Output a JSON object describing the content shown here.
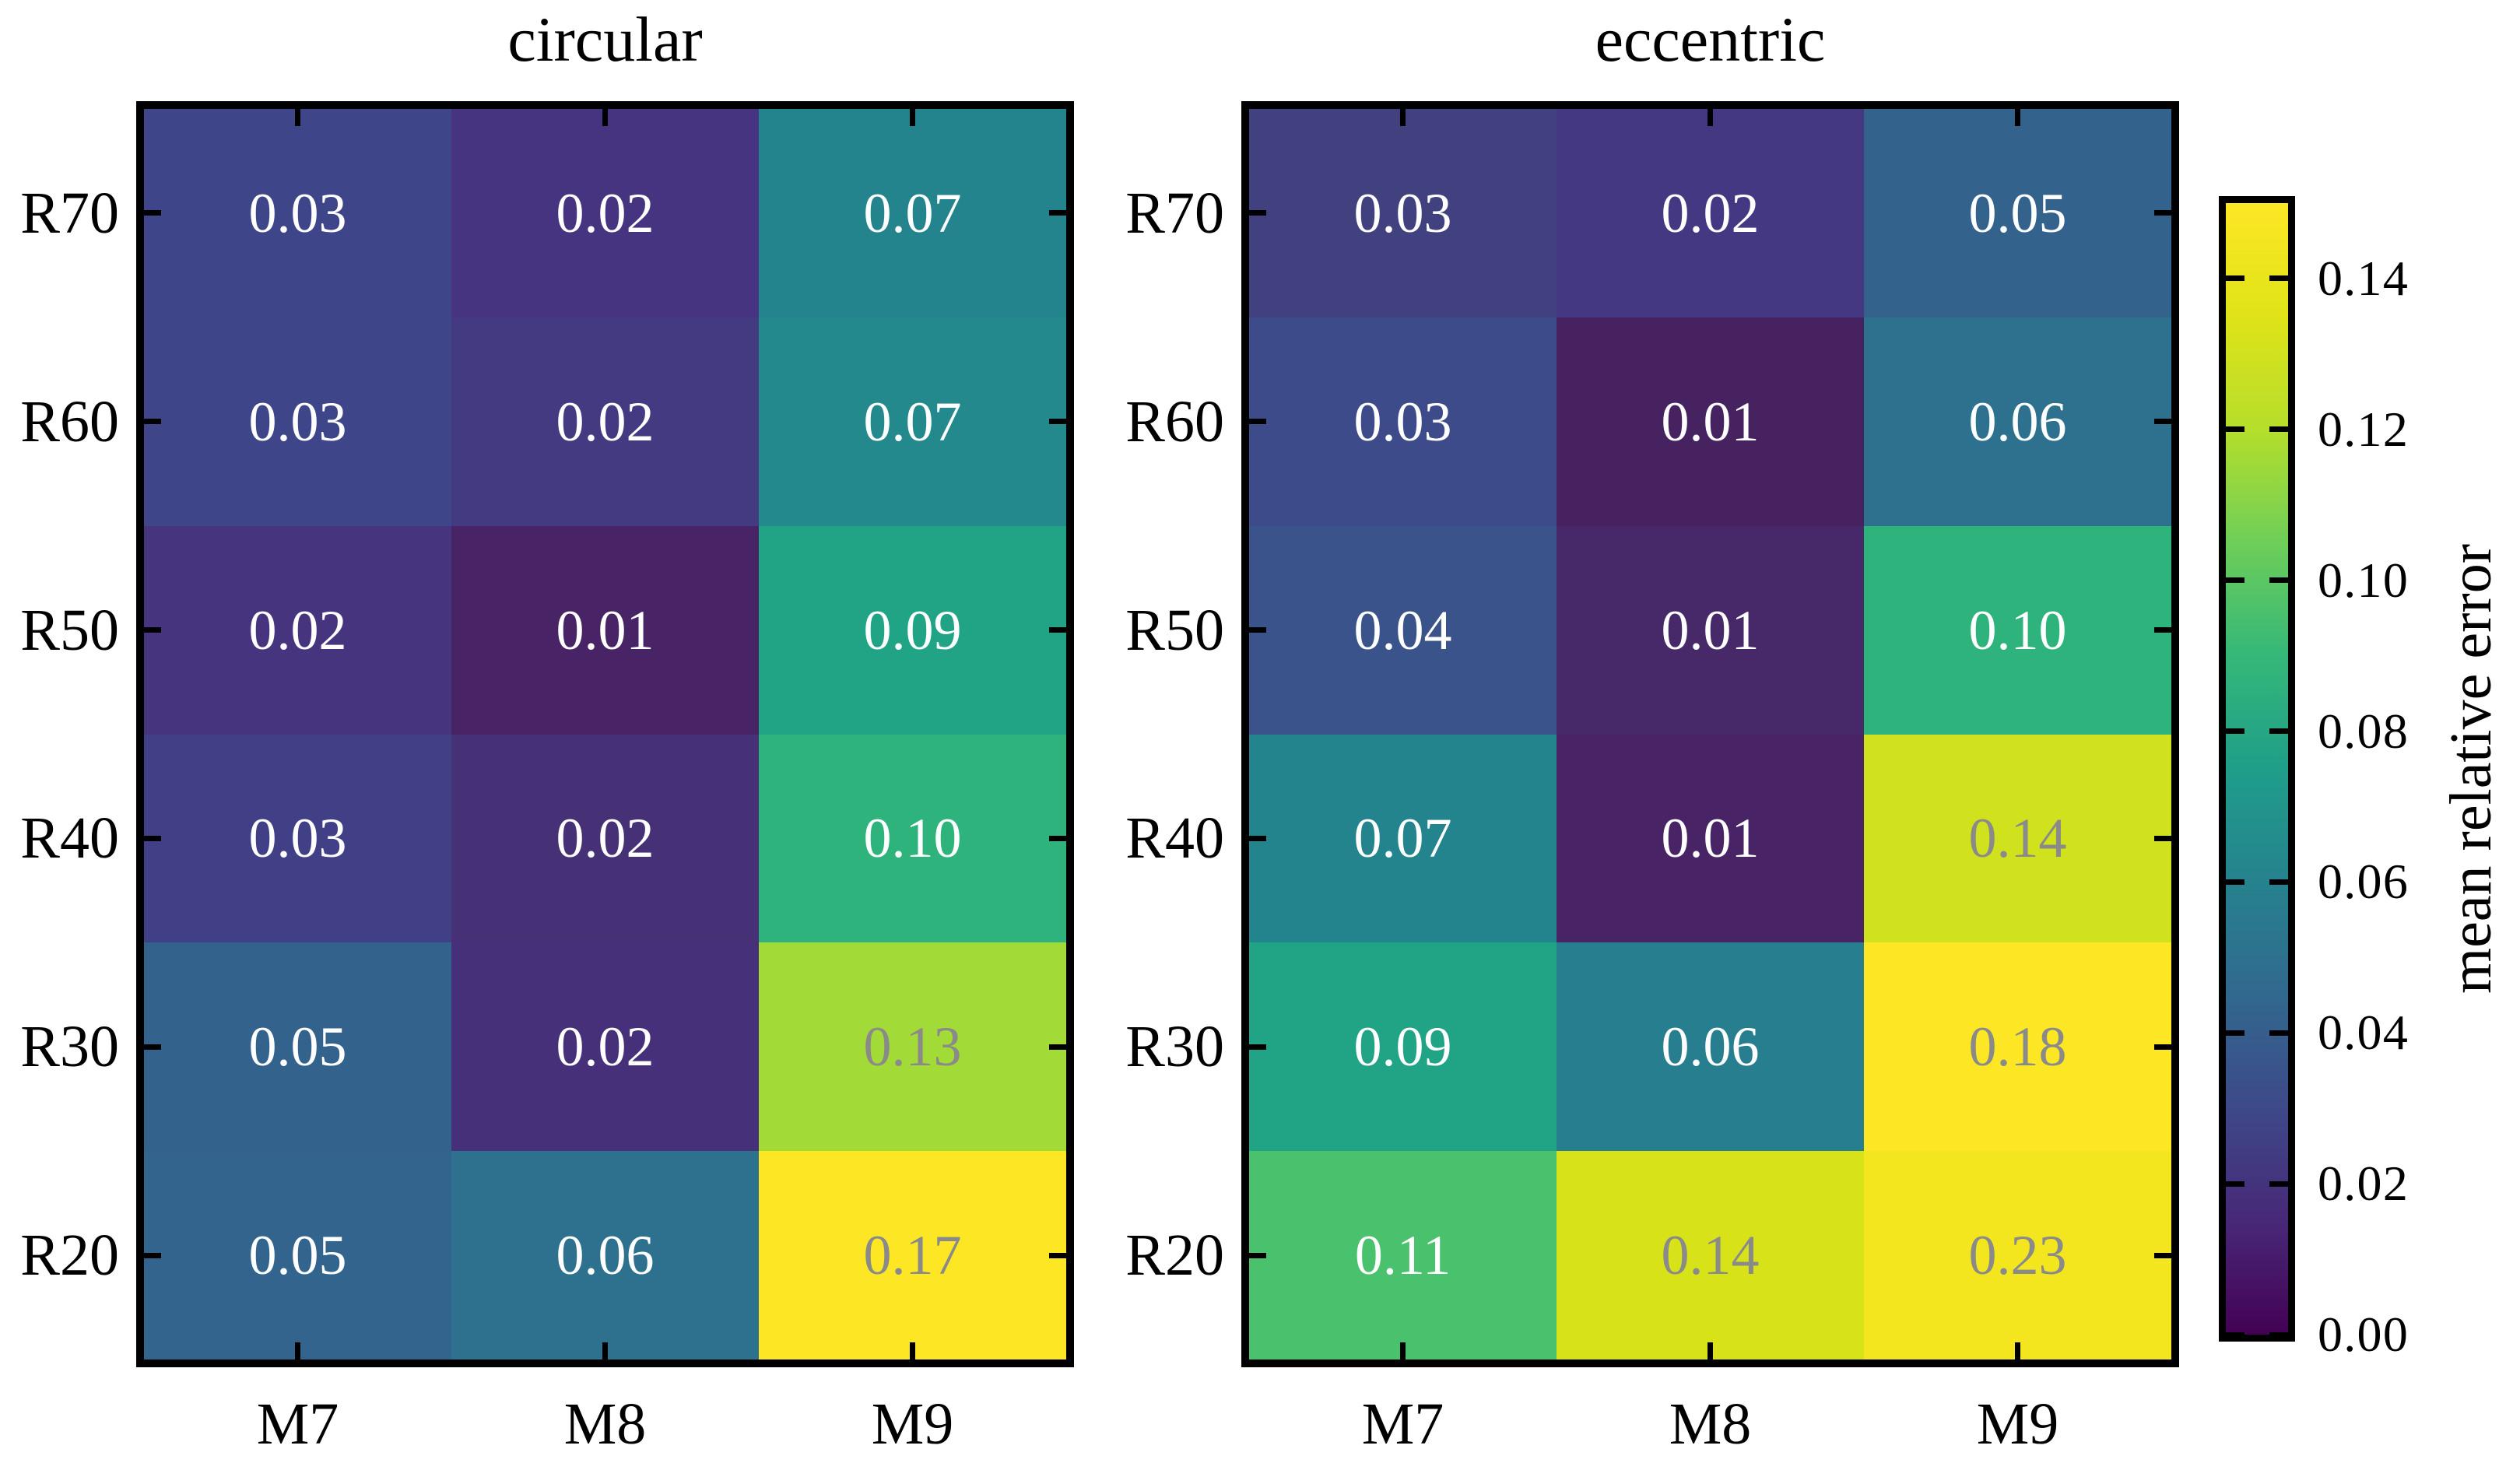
{
  "panels": [
    {
      "title": "circular",
      "row_labels": [
        "R70",
        "R60",
        "R50",
        "R40",
        "R30",
        "R20"
      ],
      "col_labels": [
        "M7",
        "M8",
        "M9"
      ],
      "cells": [
        [
          {
            "text": "0.03",
            "bg": "#3f4589",
            "fg": "#ffffff"
          },
          {
            "text": "0.02",
            "bg": "#463480",
            "fg": "#ffffff"
          },
          {
            "text": "0.07",
            "bg": "#24848d",
            "fg": "#ffffff"
          }
        ],
        [
          {
            "text": "0.03",
            "bg": "#3e4689",
            "fg": "#ffffff"
          },
          {
            "text": "0.02",
            "bg": "#443a82",
            "fg": "#ffffff"
          },
          {
            "text": "0.07",
            "bg": "#23898d",
            "fg": "#ffffff"
          }
        ],
        [
          {
            "text": "0.02",
            "bg": "#46347e",
            "fg": "#ffffff"
          },
          {
            "text": "0.01",
            "bg": "#482366",
            "fg": "#ffffff"
          },
          {
            "text": "0.09",
            "bg": "#21a386",
            "fg": "#ffffff"
          }
        ],
        [
          {
            "text": "0.03",
            "bg": "#413f85",
            "fg": "#ffffff"
          },
          {
            "text": "0.02",
            "bg": "#463177",
            "fg": "#ffffff"
          },
          {
            "text": "0.10",
            "bg": "#2eb37c",
            "fg": "#ffffff"
          }
        ],
        [
          {
            "text": "0.05",
            "bg": "#33628d",
            "fg": "#ffffff"
          },
          {
            "text": "0.02",
            "bg": "#46307a",
            "fg": "#ffffff"
          },
          {
            "text": "0.13",
            "bg": "#a2da37",
            "fg": "#8a8a8a"
          }
        ],
        [
          {
            "text": "0.05",
            "bg": "#32648d",
            "fg": "#ffffff"
          },
          {
            "text": "0.06",
            "bg": "#2d718e",
            "fg": "#ffffff"
          },
          {
            "text": "0.17",
            "bg": "#fde725",
            "fg": "#8a8a8a"
          }
        ]
      ]
    },
    {
      "title": "eccentric",
      "row_labels": [
        "R70",
        "R60",
        "R50",
        "R40",
        "R30",
        "R20"
      ],
      "col_labels": [
        "M7",
        "M8",
        "M9"
      ],
      "cells": [
        [
          {
            "text": "0.03",
            "bg": "#42417f",
            "fg": "#ffffff"
          },
          {
            "text": "0.02",
            "bg": "#453882",
            "fg": "#ffffff"
          },
          {
            "text": "0.05",
            "bg": "#33628d",
            "fg": "#ffffff"
          }
        ],
        [
          {
            "text": "0.03",
            "bg": "#3d4b8a",
            "fg": "#ffffff"
          },
          {
            "text": "0.01",
            "bg": "#472261",
            "fg": "#ffffff"
          },
          {
            "text": "0.06",
            "bg": "#2d718e",
            "fg": "#ffffff"
          }
        ],
        [
          {
            "text": "0.04",
            "bg": "#3a538b",
            "fg": "#ffffff"
          },
          {
            "text": "0.01",
            "bg": "#472969",
            "fg": "#ffffff"
          },
          {
            "text": "0.10",
            "bg": "#2eb37c",
            "fg": "#ffffff"
          }
        ],
        [
          {
            "text": "0.07",
            "bg": "#24848d",
            "fg": "#ffffff"
          },
          {
            "text": "0.01",
            "bg": "#482366",
            "fg": "#ffffff"
          },
          {
            "text": "0.14",
            "bg": "#d0e11d",
            "fg": "#8a8a8a"
          }
        ],
        [
          {
            "text": "0.09",
            "bg": "#21a386",
            "fg": "#ffffff"
          },
          {
            "text": "0.06",
            "bg": "#277e8e",
            "fg": "#ffffff"
          },
          {
            "text": "0.18",
            "bg": "#fde725",
            "fg": "#8a8a8a"
          }
        ],
        [
          {
            "text": "0.11",
            "bg": "#4ac16d",
            "fg": "#ffffff"
          },
          {
            "text": "0.14",
            "bg": "#d8e219",
            "fg": "#8a8a8a"
          },
          {
            "text": "0.23",
            "bg": "#f4e61e",
            "fg": "#8a8a8a"
          }
        ]
      ]
    }
  ],
  "colorbar": {
    "label": "mean relative error",
    "tick_labels": [
      "0.00",
      "0.02",
      "0.04",
      "0.06",
      "0.08",
      "0.10",
      "0.12",
      "0.14"
    ],
    "vmin": 0.0,
    "vmax": 0.15,
    "colormap": "viridis",
    "gradient": [
      "#440154",
      "#482878",
      "#3e4989",
      "#31688e",
      "#26828e",
      "#1f9e89",
      "#35b779",
      "#6ece58",
      "#b5de2b",
      "#dfe318",
      "#fde725"
    ]
  },
  "colors": {
    "background": "#ffffff",
    "spine": "#000000",
    "label_text": "#000000",
    "annotation_light": "#ffffff",
    "annotation_dark": "#8a8a8a"
  },
  "chart_data": [
    {
      "type": "heatmap",
      "title": "circular",
      "rows": [
        "R70",
        "R60",
        "R50",
        "R40",
        "R30",
        "R20"
      ],
      "columns": [
        "M7",
        "M8",
        "M9"
      ],
      "values": [
        [
          0.03,
          0.02,
          0.07
        ],
        [
          0.03,
          0.02,
          0.07
        ],
        [
          0.02,
          0.01,
          0.09
        ],
        [
          0.03,
          0.02,
          0.1
        ],
        [
          0.05,
          0.02,
          0.13
        ],
        [
          0.05,
          0.06,
          0.17
        ]
      ],
      "colormap": "viridis",
      "vmin": 0.0,
      "vmax": 0.15,
      "colorbar_label": "mean relative error",
      "annotations": true,
      "legend_position": "right-shared-colorbar"
    },
    {
      "type": "heatmap",
      "title": "eccentric",
      "rows": [
        "R70",
        "R60",
        "R50",
        "R40",
        "R30",
        "R20"
      ],
      "columns": [
        "M7",
        "M8",
        "M9"
      ],
      "values": [
        [
          0.03,
          0.02,
          0.05
        ],
        [
          0.03,
          0.01,
          0.06
        ],
        [
          0.04,
          0.01,
          0.1
        ],
        [
          0.07,
          0.01,
          0.14
        ],
        [
          0.09,
          0.06,
          0.18
        ],
        [
          0.11,
          0.14,
          0.23
        ]
      ],
      "colormap": "viridis",
      "vmin": 0.0,
      "vmax": 0.15,
      "colorbar_label": "mean relative error",
      "annotations": true,
      "legend_position": "right-shared-colorbar"
    }
  ]
}
